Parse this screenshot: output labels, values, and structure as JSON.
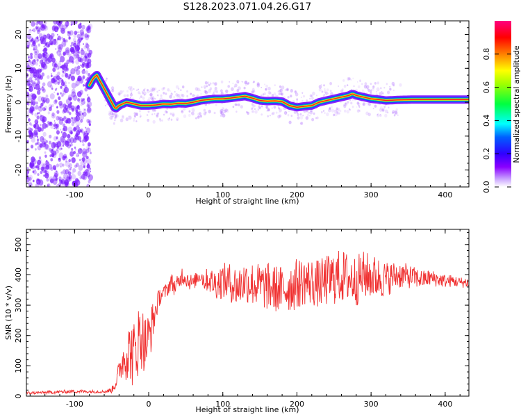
{
  "figure_title": "S128.2023.071.04.26.G17",
  "colors": {
    "snr_line": "#f03030",
    "frequency_trace": "#ff2020",
    "frequency_band": "#00d0a0",
    "scatter_noise": "#7a1cff",
    "axes": "#000000"
  },
  "chart_data": [
    {
      "type": "heatmap",
      "title": "",
      "xlabel": "Height of straight line (km)",
      "ylabel": "Frequency (Hz)",
      "xlim": [
        -165,
        432
      ],
      "ylim": [
        -25,
        24
      ],
      "x_ticks": [
        "-100",
        "0",
        "100",
        "200",
        "300",
        "400"
      ],
      "y_ticks": [
        "-20",
        "-10",
        "0",
        "10",
        "20"
      ],
      "colorbar": {
        "label": "Normalized spectral amplitude",
        "range": [
          0.0,
          1.0
        ],
        "ticks": [
          "0.0",
          "0.2",
          "0.4",
          "0.6",
          "0.8"
        ],
        "colormap": "hsv"
      },
      "frequency_trace": {
        "x": [
          -80,
          -75,
          -70,
          -65,
          -60,
          -55,
          -50,
          -45,
          -40,
          -30,
          -20,
          -10,
          0,
          10,
          20,
          30,
          40,
          50,
          60,
          70,
          80,
          90,
          100,
          110,
          120,
          130,
          140,
          150,
          160,
          170,
          180,
          190,
          200,
          210,
          220,
          230,
          240,
          250,
          260,
          270,
          275,
          280,
          290,
          300,
          310,
          320,
          330,
          340,
          360,
          380,
          400,
          420,
          432
        ],
        "y": [
          5,
          7,
          8,
          6,
          4,
          2,
          0,
          -2,
          -1,
          0,
          -0.5,
          -1,
          -1,
          -0.8,
          -0.5,
          -0.6,
          -0.3,
          -0.4,
          0,
          0.5,
          0.8,
          1,
          1,
          1.2,
          1.5,
          1.8,
          1.2,
          0.5,
          0.3,
          0.4,
          0.2,
          -1,
          -1.5,
          -1.2,
          -1,
          0,
          0.5,
          1,
          1.5,
          2,
          2.5,
          2,
          1.5,
          1,
          0.8,
          0.5,
          0.6,
          0.7,
          0.8,
          0.8,
          0.8,
          0.8,
          0.8
        ]
      }
    },
    {
      "type": "line",
      "title": "",
      "xlabel": "Height of straight line (km)",
      "ylabel": "SNR (10 * v/v)",
      "xlim": [
        -165,
        432
      ],
      "ylim": [
        0,
        550
      ],
      "x_ticks": [
        "-100",
        "0",
        "100",
        "200",
        "300",
        "400"
      ],
      "y_ticks": [
        "0",
        "100",
        "200",
        "300",
        "400",
        "500"
      ],
      "series": [
        {
          "x": [
            -165,
            -140,
            -120,
            -100,
            -80,
            -60,
            -50,
            -45,
            -40,
            -35,
            -30,
            -25,
            -20,
            -15,
            -10,
            -5,
            0,
            5,
            10,
            15,
            20,
            25,
            30,
            35,
            40,
            45,
            50,
            55,
            60,
            65,
            70,
            75,
            80,
            90,
            100,
            110,
            120,
            130,
            140,
            150,
            160,
            170,
            180,
            190,
            200,
            210,
            220,
            230,
            240,
            250,
            260,
            270,
            280,
            290,
            300,
            310,
            320,
            330,
            340,
            350,
            360,
            370,
            380,
            390,
            400,
            410,
            420,
            432
          ],
          "y": [
            10,
            12,
            14,
            16,
            15,
            15,
            20,
            40,
            80,
            120,
            140,
            150,
            130,
            180,
            200,
            170,
            190,
            240,
            290,
            330,
            340,
            350,
            380,
            360,
            370,
            400,
            390,
            380,
            370,
            390,
            400,
            380,
            385,
            370,
            380,
            375,
            360,
            380,
            370,
            365,
            360,
            355,
            350,
            360,
            370,
            380,
            375,
            370,
            380,
            390,
            395,
            390,
            380,
            400,
            395,
            390,
            385,
            395,
            400,
            395,
            390,
            385,
            390,
            385,
            380,
            380,
            375,
            375
          ],
          "noise_amplitude": [
            5,
            5,
            6,
            6,
            5,
            5,
            10,
            20,
            40,
            60,
            90,
            100,
            120,
            120,
            110,
            100,
            90,
            70,
            40,
            30,
            25,
            25,
            30,
            30,
            30,
            30,
            30,
            30,
            25,
            25,
            25,
            35,
            40,
            50,
            60,
            65,
            70,
            70,
            75,
            75,
            80,
            80,
            80,
            85,
            85,
            80,
            80,
            80,
            85,
            90,
            90,
            85,
            85,
            80,
            75,
            70,
            60,
            50,
            45,
            40,
            35,
            30,
            28,
            25,
            22,
            20,
            18,
            18
          ]
        }
      ]
    }
  ]
}
